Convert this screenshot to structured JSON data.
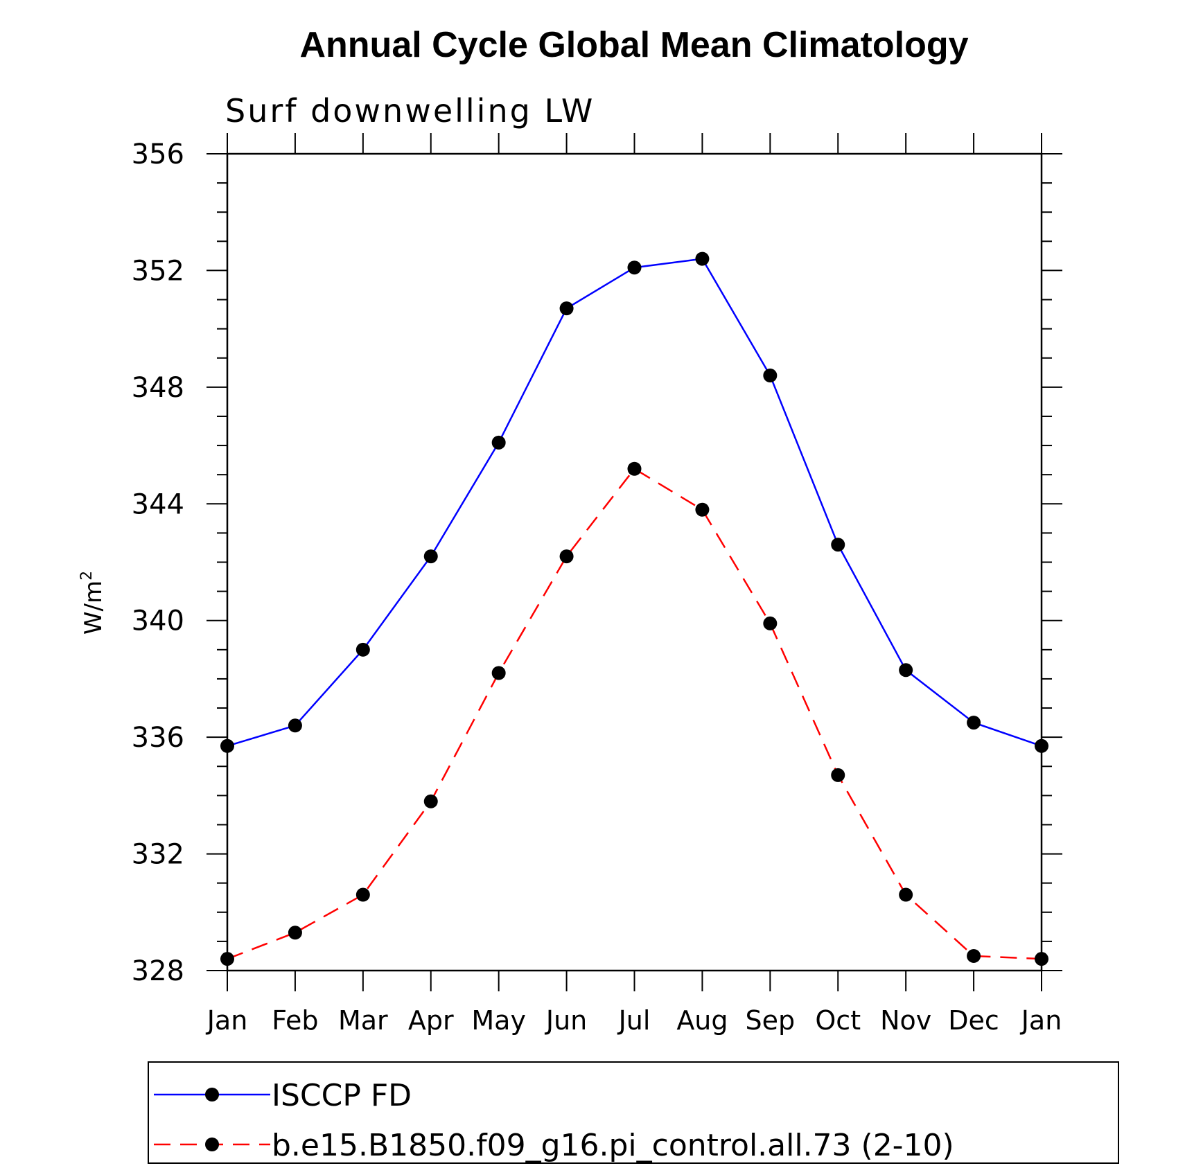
{
  "chart_data": {
    "type": "line",
    "title": "Annual Cycle Global Mean Climatology",
    "subtitle": "Surf downwelling LW",
    "ylabel": "W/m",
    "ylabel_sup": "2",
    "ylim": [
      328,
      356
    ],
    "yticks": [
      "328",
      "332",
      "336",
      "340",
      "344",
      "348",
      "352",
      "356"
    ],
    "categories": [
      "Jan",
      "Feb",
      "Mar",
      "Apr",
      "May",
      "Jun",
      "Jul",
      "Aug",
      "Sep",
      "Oct",
      "Nov",
      "Dec",
      "Jan"
    ],
    "series": [
      {
        "name": "ISCCP FD",
        "color": "#0000ff",
        "dash": "solid",
        "values": [
          335.7,
          336.4,
          339.0,
          342.2,
          346.1,
          350.7,
          352.1,
          352.4,
          348.4,
          342.6,
          338.3,
          336.5,
          335.7
        ]
      },
      {
        "name": "b.e15.B1850.f09_g16.pi_control.all.73 (2-10)",
        "color": "#ff0000",
        "dash": "dashed",
        "values": [
          328.4,
          329.3,
          330.6,
          333.8,
          338.2,
          342.2,
          345.2,
          343.8,
          339.9,
          334.7,
          330.6,
          328.5,
          328.4
        ]
      }
    ],
    "grid": false,
    "legend_position": "bottom"
  }
}
